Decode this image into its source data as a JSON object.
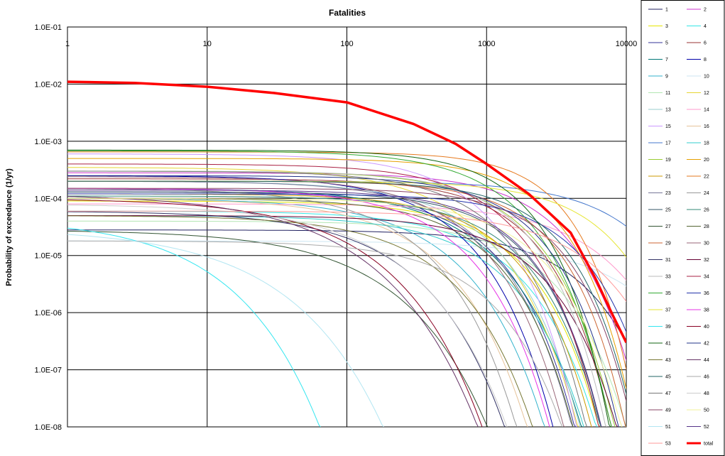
{
  "chart_data": {
    "type": "line",
    "title": "Fatalities",
    "xlabel": "",
    "ylabel": "Probability of exceedance (1/yr)",
    "x_scale": "log",
    "y_scale": "log",
    "xlim": [
      1,
      10000
    ],
    "ylim": [
      1e-08,
      0.1
    ],
    "x_tick_labels": [
      "1",
      "10",
      "100",
      "1000",
      "10000"
    ],
    "y_tick_labels": [
      "1.0E-01",
      "1.0E-02",
      "1.0E-03",
      "1.0E-04",
      "1.0E-05",
      "1.0E-06",
      "1.0E-07",
      "1.0E-08"
    ],
    "grid": true,
    "legend": "right",
    "series": [
      {
        "name": "1",
        "color": "#202060",
        "p0": 2.8e-05,
        "n": 2200,
        "k": 3.0
      },
      {
        "name": "2",
        "color": "#cc33cc",
        "p0": 0.00028,
        "n": 1500,
        "k": 3.2
      },
      {
        "name": "3",
        "color": "#e6e600",
        "p0": 9e-05,
        "n": 700,
        "k": 3.0
      },
      {
        "name": "4",
        "color": "#33e6e6",
        "p0": 6e-05,
        "n": 600,
        "k": 2.8
      },
      {
        "name": "5",
        "color": "#333399",
        "p0": 0.00013,
        "n": 450,
        "k": 3.0
      },
      {
        "name": "6",
        "color": "#993333",
        "p0": 0.00022,
        "n": 900,
        "k": 3.2
      },
      {
        "name": "7",
        "color": "#007777",
        "p0": 0.00015,
        "n": 350,
        "k": 2.6
      },
      {
        "name": "8",
        "color": "#0000aa",
        "p0": 0.00025,
        "n": 250,
        "k": 2.8
      },
      {
        "name": "9",
        "color": "#33b3cc",
        "p0": 0.0001,
        "n": 200,
        "k": 2.6
      },
      {
        "name": "10",
        "color": "#cce6f2",
        "p0": 1.8e-05,
        "n": 5000,
        "k": 2.6
      },
      {
        "name": "11",
        "color": "#b3e6b3",
        "p0": 4e-05,
        "n": 1200,
        "k": 3.0
      },
      {
        "name": "12",
        "color": "#e6d633",
        "p0": 0.00035,
        "n": 300,
        "k": 2.6
      },
      {
        "name": "13",
        "color": "#99cccc",
        "p0": 0.0002,
        "n": 400,
        "k": 2.8
      },
      {
        "name": "14",
        "color": "#ff99cc",
        "p0": 8e-05,
        "n": 3000,
        "k": 2.8
      },
      {
        "name": "15",
        "color": "#cc99ff",
        "p0": 0.0006,
        "n": 400,
        "k": 3.0
      },
      {
        "name": "16",
        "color": "#e6c399",
        "p0": 0.0001,
        "n": 150,
        "k": 2.6
      },
      {
        "name": "17",
        "color": "#4477cc",
        "p0": 0.0002,
        "n": 5500,
        "k": 3.0
      },
      {
        "name": "18",
        "color": "#33cccc",
        "p0": 5e-05,
        "n": 500,
        "k": 2.8
      },
      {
        "name": "19",
        "color": "#99cc33",
        "p0": 0.0003,
        "n": 800,
        "k": 3.0
      },
      {
        "name": "20",
        "color": "#e6a000",
        "p0": 0.0005,
        "n": 1400,
        "k": 3.4
      },
      {
        "name": "21",
        "color": "#cc9900",
        "p0": 0.00012,
        "n": 600,
        "k": 3.0
      },
      {
        "name": "22",
        "color": "#e67a1f",
        "p0": 0.00065,
        "n": 1800,
        "k": 3.8
      },
      {
        "name": "23",
        "color": "#777799",
        "p0": 0.0002,
        "n": 350,
        "k": 2.8
      },
      {
        "name": "24",
        "color": "#999999",
        "p0": 0.00015,
        "n": 120,
        "k": 2.6
      },
      {
        "name": "25",
        "color": "#335566",
        "p0": 0.00013,
        "n": 800,
        "k": 3.2
      },
      {
        "name": "26",
        "color": "#338877",
        "p0": 0.00011,
        "n": 700,
        "k": 3.0
      },
      {
        "name": "27",
        "color": "#335533",
        "p0": 2.8e-05,
        "n": 60,
        "k": 2.2
      },
      {
        "name": "28",
        "color": "#556633",
        "p0": 0.0001,
        "n": 450,
        "k": 3.0
      },
      {
        "name": "29",
        "color": "#cc6633",
        "p0": 0.0002,
        "n": 1300,
        "k": 3.4
      },
      {
        "name": "30",
        "color": "#996677",
        "p0": 0.00024,
        "n": 300,
        "k": 2.8
      },
      {
        "name": "31",
        "color": "#333366",
        "p0": 6e-05,
        "n": 90,
        "k": 2.4
      },
      {
        "name": "32",
        "color": "#660033",
        "p0": 5e-05,
        "n": 1000,
        "k": 3.0
      },
      {
        "name": "33",
        "color": "#bbbbbb",
        "p0": 0.0003,
        "n": 800,
        "k": 3.2
      },
      {
        "name": "34",
        "color": "#aa2244",
        "p0": 0.0004,
        "n": 600,
        "k": 3.0
      },
      {
        "name": "35",
        "color": "#33aa33",
        "p0": 0.00068,
        "n": 700,
        "k": 3.0
      },
      {
        "name": "36",
        "color": "#2233aa",
        "p0": 0.00012,
        "n": 2000,
        "k": 3.2
      },
      {
        "name": "37",
        "color": "#e6e633",
        "p0": 0.0002,
        "n": 3500,
        "k": 3.2
      },
      {
        "name": "38",
        "color": "#e633e6",
        "p0": 0.00015,
        "n": 250,
        "k": 2.8
      },
      {
        "name": "39",
        "color": "#33e6f0",
        "p0": 4.5e-05,
        "n": 3.5,
        "k": 2.2
      },
      {
        "name": "40",
        "color": "#880022",
        "p0": 0.0001,
        "n": 45,
        "k": 2.2
      },
      {
        "name": "41",
        "color": "#116611",
        "p0": 0.0007,
        "n": 900,
        "k": 3.4
      },
      {
        "name": "42",
        "color": "#223388",
        "p0": 0.00025,
        "n": 1000,
        "k": 3.2
      },
      {
        "name": "43",
        "color": "#777733",
        "p0": 5e-05,
        "n": 180,
        "k": 2.6
      },
      {
        "name": "44",
        "color": "#663366",
        "p0": 0.00012,
        "n": 30,
        "k": 2.0
      },
      {
        "name": "45",
        "color": "#226666",
        "p0": 0.0002,
        "n": 1500,
        "k": 3.4
      },
      {
        "name": "46",
        "color": "#aaaaaa",
        "p0": 1.8e-05,
        "n": 400,
        "k": 2.8
      },
      {
        "name": "47",
        "color": "#777777",
        "p0": 0.0003,
        "n": 500,
        "k": 3.0
      },
      {
        "name": "48",
        "color": "#cccccc",
        "p0": 8e-05,
        "n": 70,
        "k": 2.2
      },
      {
        "name": "49",
        "color": "#884466",
        "p0": 0.00015,
        "n": 1500,
        "k": 3.4
      },
      {
        "name": "50",
        "color": "#f2f299",
        "p0": 0.0001,
        "n": 1000,
        "k": 3.0
      },
      {
        "name": "51",
        "color": "#b3e6f2",
        "p0": 3e-05,
        "n": 8,
        "k": 2.0
      },
      {
        "name": "52",
        "color": "#553388",
        "p0": 0.00014,
        "n": 800,
        "k": 3.2
      },
      {
        "name": "53",
        "color": "#ff9999",
        "p0": 6e-05,
        "n": 2500,
        "k": 2.8
      },
      {
        "name": "total",
        "color": "#ff0000",
        "width": 3.5,
        "x": [
          1,
          3,
          10,
          30,
          100,
          300,
          600,
          1000,
          2000,
          4000,
          6000,
          8000,
          10000
        ],
        "y": [
          0.011,
          0.0105,
          0.009,
          0.007,
          0.0048,
          0.002,
          0.0009,
          0.0004,
          0.00012,
          2.5e-05,
          4e-06,
          9e-07,
          3e-07
        ]
      }
    ]
  }
}
